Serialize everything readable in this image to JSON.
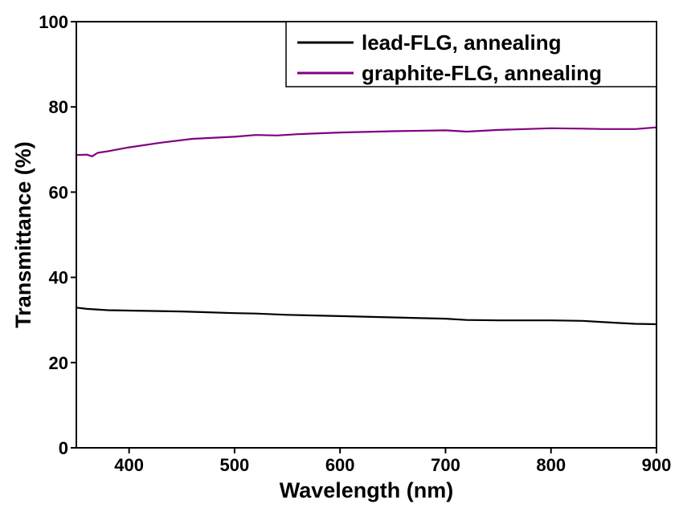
{
  "chart_data": {
    "type": "line",
    "xlabel": "Wavelength (nm)",
    "ylabel": "Transmittance (%)",
    "xlim": [
      350,
      900
    ],
    "ylim": [
      0,
      100
    ],
    "xticks": [
      400,
      500,
      600,
      700,
      800,
      900
    ],
    "yticks": [
      0,
      20,
      40,
      60,
      80,
      100
    ],
    "grid": false,
    "legend_position": "top-right",
    "series": [
      {
        "name": "lead-FLG, annealing",
        "color": "#000000",
        "x": [
          350,
          360,
          380,
          400,
          450,
          500,
          520,
          550,
          600,
          650,
          700,
          720,
          750,
          800,
          830,
          850,
          880,
          900
        ],
        "y": [
          32.9,
          32.6,
          32.3,
          32.2,
          32.0,
          31.6,
          31.5,
          31.2,
          30.9,
          30.6,
          30.3,
          30.0,
          29.9,
          29.9,
          29.8,
          29.5,
          29.1,
          29.0
        ]
      },
      {
        "name": "graphite-FLG, annealing",
        "color": "#800080",
        "x": [
          350,
          360,
          365,
          370,
          380,
          400,
          430,
          460,
          500,
          520,
          540,
          560,
          600,
          650,
          700,
          720,
          750,
          800,
          830,
          850,
          880,
          900
        ],
        "y": [
          68.7,
          68.8,
          68.4,
          69.2,
          69.6,
          70.5,
          71.6,
          72.5,
          73.0,
          73.4,
          73.3,
          73.6,
          74.0,
          74.3,
          74.5,
          74.2,
          74.6,
          75.0,
          74.9,
          74.8,
          74.8,
          75.2
        ]
      }
    ]
  }
}
